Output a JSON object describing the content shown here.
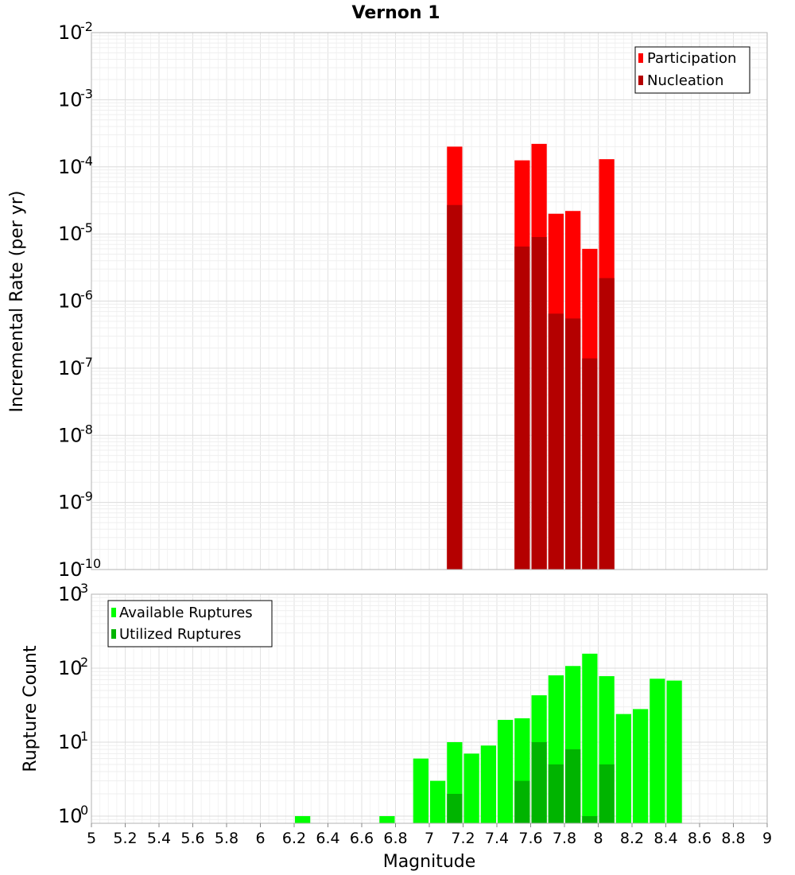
{
  "title": "Vernon 1",
  "chart_data": [
    {
      "type": "bar",
      "yscale": "log",
      "ylabel": "Incremental Rate (per yr)",
      "xlabel": "",
      "ylim": [
        1e-10,
        0.01
      ],
      "xlim": [
        5,
        9
      ],
      "bar_width": 0.1,
      "ytick_exponents": [
        -10,
        -9,
        -8,
        -7,
        -6,
        -5,
        -4,
        -3,
        -2
      ],
      "legend": {
        "position": "top-right",
        "entries": [
          "Participation",
          "Nucleation"
        ]
      },
      "series": [
        {
          "name": "Participation",
          "color": "#ff0000",
          "x": [
            7.15,
            7.55,
            7.65,
            7.75,
            7.85,
            7.95,
            8.05
          ],
          "values": [
            0.0002,
            0.000125,
            0.00022,
            2e-05,
            2.2e-05,
            6e-06,
            0.00013
          ]
        },
        {
          "name": "Nucleation",
          "color": "#b40000",
          "x": [
            7.15,
            7.55,
            7.65,
            7.75,
            7.85,
            7.95,
            8.05
          ],
          "values": [
            2.7e-05,
            6.5e-06,
            9e-06,
            6.5e-07,
            5.5e-07,
            1.4e-07,
            2.2e-06
          ]
        }
      ]
    },
    {
      "type": "bar",
      "yscale": "log",
      "ylabel": "Rupture Count",
      "xlabel": "Magnitude",
      "ylim": [
        0.8,
        1000
      ],
      "xlim": [
        5,
        9
      ],
      "bar_width": 0.1,
      "ytick_exponents": [
        0,
        1,
        2,
        3
      ],
      "xticks": [
        "5",
        "5.2",
        "5.4",
        "5.6",
        "5.8",
        "6",
        "6.2",
        "6.4",
        "6.6",
        "6.8",
        "7",
        "7.2",
        "7.4",
        "7.6",
        "7.8",
        "8",
        "8.2",
        "8.4",
        "8.6",
        "8.8",
        "9"
      ],
      "legend": {
        "position": "top-left",
        "entries": [
          "Available Ruptures",
          "Utilized Ruptures"
        ]
      },
      "series": [
        {
          "name": "Available Ruptures",
          "color": "#00ff00",
          "x": [
            6.25,
            6.75,
            6.95,
            7.05,
            7.15,
            7.25,
            7.35,
            7.45,
            7.55,
            7.65,
            7.75,
            7.85,
            7.95,
            8.05,
            8.15,
            8.25,
            8.35,
            8.45
          ],
          "values": [
            1,
            1,
            6,
            3,
            10,
            7,
            9,
            20,
            21,
            43,
            80,
            107,
            157,
            78,
            24,
            28,
            72,
            68
          ]
        },
        {
          "name": "Utilized Ruptures",
          "color": "#00b400",
          "x": [
            7.15,
            7.55,
            7.65,
            7.75,
            7.85,
            7.95,
            8.05
          ],
          "values": [
            2,
            3,
            10,
            5,
            8,
            1,
            5
          ]
        }
      ]
    }
  ]
}
